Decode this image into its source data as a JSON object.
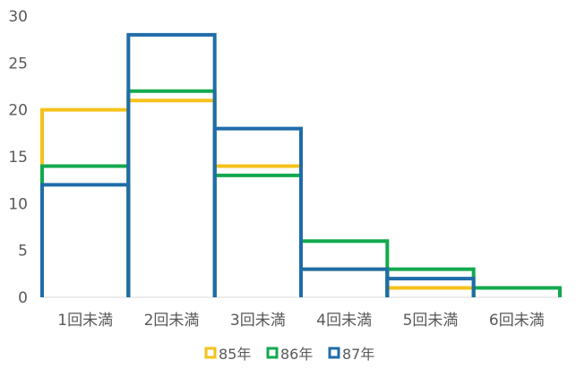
{
  "chart_data": {
    "type": "histogram-step",
    "categories": [
      "1回未満",
      "2回未満",
      "3回未満",
      "4回未満",
      "5回未満",
      "6回未満"
    ],
    "series": [
      {
        "name": "85年",
        "color": "#f5c21a",
        "values": [
          20,
          21,
          14,
          3,
          1,
          0
        ]
      },
      {
        "name": "86年",
        "color": "#12a94e",
        "values": [
          14,
          22,
          13,
          6,
          3,
          1
        ]
      },
      {
        "name": "87年",
        "color": "#1f6ca8",
        "values": [
          12,
          28,
          18,
          3,
          2,
          0
        ]
      }
    ],
    "y_ticks": [
      "0",
      "5",
      "10",
      "15",
      "20",
      "25",
      "30"
    ],
    "ylim": [
      0,
      30
    ],
    "grid": false,
    "legend_position": "bottom"
  }
}
